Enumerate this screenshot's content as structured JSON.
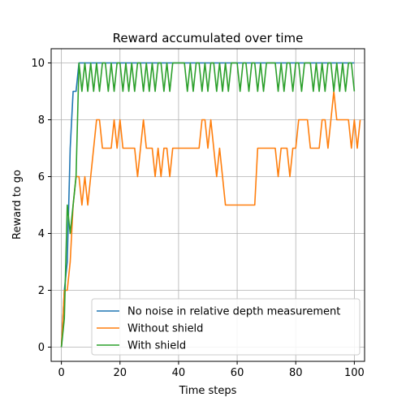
{
  "chart_data": {
    "type": "line",
    "title": "Reward accumulated over time",
    "xlabel": "Time steps",
    "ylabel": "Reward to go",
    "xlim": [
      -3.5,
      103.5
    ],
    "ylim": [
      -0.5,
      10.5
    ],
    "xticks": [
      0,
      20,
      40,
      60,
      80,
      100
    ],
    "yticks": [
      0,
      2,
      4,
      6,
      8,
      10
    ],
    "grid": true,
    "legend_position": "lower-right",
    "series": [
      {
        "name": "No noise in relative depth measurement",
        "color": "#1f77b4",
        "values": [
          0,
          2,
          3,
          7,
          9,
          9,
          10,
          10,
          10,
          10,
          10,
          10,
          10,
          10,
          10,
          10,
          10,
          10,
          10,
          10,
          10,
          10,
          10,
          10,
          10,
          10,
          10,
          10,
          10,
          10,
          10,
          10,
          10,
          10,
          10,
          10,
          10,
          10,
          10,
          10,
          10,
          10,
          10,
          10,
          10,
          10,
          10,
          10,
          10,
          10,
          10,
          10,
          10,
          10,
          10,
          10,
          10,
          10,
          10,
          10,
          10,
          10,
          10,
          10,
          10,
          10,
          10,
          10,
          10,
          10,
          10,
          10,
          10,
          10,
          10,
          10,
          10,
          10,
          10,
          10,
          10,
          10,
          10,
          10,
          10,
          10,
          10,
          10,
          10,
          10,
          10,
          10,
          10,
          10,
          10,
          10,
          10,
          10,
          10,
          10,
          10
        ]
      },
      {
        "name": "Without shield",
        "color": "#ff7f0e",
        "values": [
          0,
          2,
          2,
          3,
          5,
          6,
          6,
          5,
          6,
          5,
          6,
          7,
          8,
          8,
          7,
          7,
          7,
          7,
          8,
          7,
          8,
          7,
          7,
          7,
          7,
          7,
          6,
          7,
          8,
          7,
          7,
          7,
          6,
          7,
          6,
          7,
          7,
          6,
          7,
          7,
          7,
          7,
          7,
          7,
          7,
          7,
          7,
          7,
          8,
          8,
          7,
          8,
          7,
          6,
          7,
          6,
          5,
          5,
          5,
          5,
          5,
          5,
          5,
          5,
          5,
          5,
          5,
          7,
          7,
          7,
          7,
          7,
          7,
          7,
          6,
          7,
          7,
          7,
          6,
          7,
          7,
          8,
          8,
          8,
          8,
          7,
          7,
          7,
          7,
          8,
          8,
          7,
          8,
          9,
          8,
          8,
          8,
          8,
          8,
          7,
          8,
          7,
          8
        ]
      },
      {
        "name": "With shield",
        "color": "#2ca02c",
        "values": [
          0,
          1,
          5,
          4,
          5,
          6,
          10,
          9,
          10,
          9,
          10,
          9,
          10,
          9,
          10,
          10,
          9,
          10,
          9,
          10,
          10,
          9,
          10,
          9,
          10,
          9,
          10,
          10,
          9,
          10,
          9,
          10,
          9,
          10,
          10,
          9,
          10,
          9,
          10,
          10,
          10,
          10,
          10,
          9,
          10,
          9,
          10,
          10,
          9,
          10,
          9,
          10,
          10,
          9,
          10,
          9,
          10,
          9,
          10,
          10,
          10,
          9,
          10,
          10,
          9,
          10,
          10,
          9,
          10,
          9,
          10,
          10,
          10,
          10,
          9,
          10,
          9,
          10,
          10,
          9,
          10,
          10,
          9,
          10,
          10,
          10,
          9,
          10,
          9,
          10,
          9,
          10,
          10,
          9,
          10,
          9,
          10,
          9,
          10,
          10,
          9
        ]
      }
    ]
  }
}
